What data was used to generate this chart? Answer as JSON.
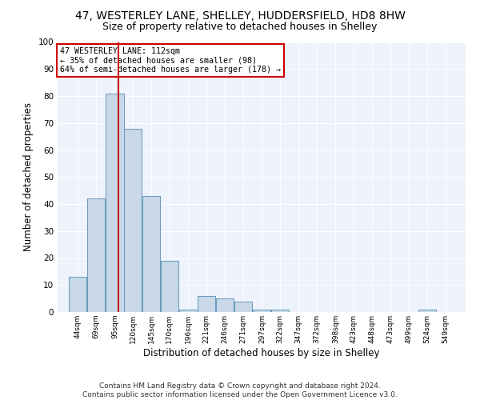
{
  "title1": "47, WESTERLEY LANE, SHELLEY, HUDDERSFIELD, HD8 8HW",
  "title2": "Size of property relative to detached houses in Shelley",
  "xlabel": "Distribution of detached houses by size in Shelley",
  "ylabel": "Number of detached properties",
  "bar_values": [
    13,
    42,
    81,
    68,
    43,
    19,
    1,
    6,
    5,
    4,
    1,
    1,
    0,
    0,
    0,
    0,
    0,
    0,
    0,
    1
  ],
  "bin_labels": [
    "44sqm",
    "69sqm",
    "95sqm",
    "120sqm",
    "145sqm",
    "170sqm",
    "196sqm",
    "221sqm",
    "246sqm",
    "271sqm",
    "297sqm",
    "322sqm",
    "347sqm",
    "372sqm",
    "398sqm",
    "423sqm",
    "448sqm",
    "473sqm",
    "499sqm",
    "524sqm",
    "549sqm"
  ],
  "bin_edges": [
    44,
    69,
    95,
    120,
    145,
    170,
    196,
    221,
    246,
    271,
    297,
    322,
    347,
    372,
    398,
    423,
    448,
    473,
    499,
    524,
    549
  ],
  "bar_color": "#c8d8e8",
  "bar_edge_color": "#6699bb",
  "property_line_x": 112,
  "property_line_color": "#cc0000",
  "annotation_text": "47 WESTERLEY LANE: 112sqm\n← 35% of detached houses are smaller (98)\n64% of semi-detached houses are larger (178) →",
  "annotation_box_color": "#ffffff",
  "annotation_box_edge_color": "#cc0000",
  "ylim": [
    0,
    100
  ],
  "yticks": [
    0,
    10,
    20,
    30,
    40,
    50,
    60,
    70,
    80,
    90,
    100
  ],
  "background_color": "#eef2fb",
  "footer": "Contains HM Land Registry data © Crown copyright and database right 2024.\nContains public sector information licensed under the Open Government Licence v3.0.",
  "title1_fontsize": 10,
  "title2_fontsize": 9,
  "xlabel_fontsize": 8.5,
  "ylabel_fontsize": 8.5,
  "footer_fontsize": 6.5
}
